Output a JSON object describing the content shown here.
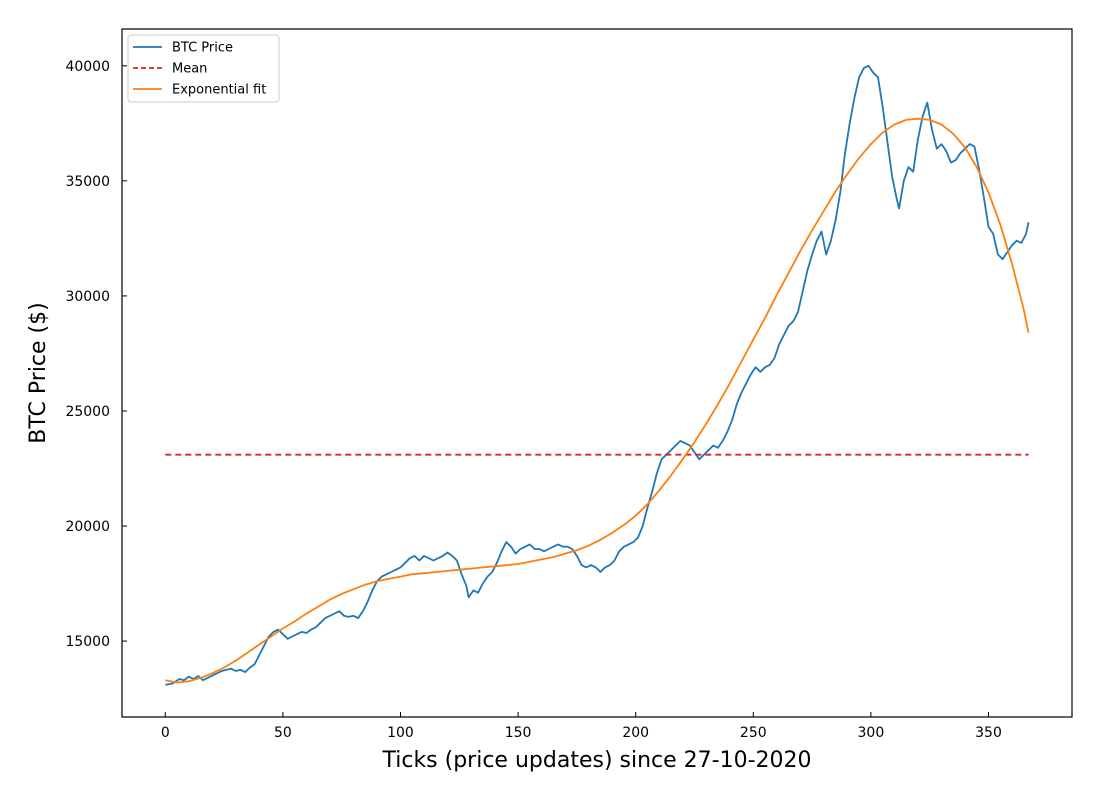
{
  "chart_data": {
    "type": "line",
    "xlabel": "Ticks (price updates) since 27-10-2020",
    "ylabel": "BTC Price ($)",
    "xlim": [
      -18.4,
      385.5
    ],
    "ylim": [
      11700,
      41600
    ],
    "xticks": [
      0,
      50,
      100,
      150,
      200,
      250,
      300,
      350
    ],
    "yticks": [
      15000,
      20000,
      25000,
      30000,
      35000,
      40000
    ],
    "grid": false,
    "legend_position": "upper-left",
    "colors": {
      "btc": "#1f77b4",
      "mean": "#d62728",
      "fit": "#ff7f0e"
    },
    "series": [
      {
        "name": "BTC Price",
        "style": "solid",
        "points": [
          [
            0,
            13100
          ],
          [
            3,
            13150
          ],
          [
            6,
            13350
          ],
          [
            8,
            13300
          ],
          [
            10,
            13450
          ],
          [
            12,
            13350
          ],
          [
            14,
            13480
          ],
          [
            16,
            13300
          ],
          [
            18,
            13400
          ],
          [
            20,
            13500
          ],
          [
            22,
            13600
          ],
          [
            24,
            13700
          ],
          [
            26,
            13750
          ],
          [
            28,
            13800
          ],
          [
            30,
            13700
          ],
          [
            32,
            13750
          ],
          [
            34,
            13650
          ],
          [
            36,
            13850
          ],
          [
            38,
            14000
          ],
          [
            40,
            14400
          ],
          [
            42,
            14800
          ],
          [
            44,
            15200
          ],
          [
            46,
            15400
          ],
          [
            48,
            15500
          ],
          [
            50,
            15300
          ],
          [
            52,
            15100
          ],
          [
            54,
            15200
          ],
          [
            56,
            15300
          ],
          [
            58,
            15400
          ],
          [
            60,
            15350
          ],
          [
            62,
            15500
          ],
          [
            64,
            15600
          ],
          [
            66,
            15800
          ],
          [
            68,
            16000
          ],
          [
            70,
            16100
          ],
          [
            72,
            16200
          ],
          [
            74,
            16300
          ],
          [
            76,
            16100
          ],
          [
            78,
            16050
          ],
          [
            80,
            16100
          ],
          [
            82,
            16000
          ],
          [
            84,
            16300
          ],
          [
            86,
            16700
          ],
          [
            88,
            17200
          ],
          [
            90,
            17600
          ],
          [
            92,
            17800
          ],
          [
            94,
            17900
          ],
          [
            96,
            18000
          ],
          [
            98,
            18100
          ],
          [
            100,
            18200
          ],
          [
            102,
            18400
          ],
          [
            104,
            18600
          ],
          [
            106,
            18700
          ],
          [
            108,
            18500
          ],
          [
            110,
            18700
          ],
          [
            112,
            18600
          ],
          [
            114,
            18500
          ],
          [
            116,
            18600
          ],
          [
            118,
            18700
          ],
          [
            120,
            18850
          ],
          [
            122,
            18700
          ],
          [
            124,
            18500
          ],
          [
            126,
            17900
          ],
          [
            128,
            17400
          ],
          [
            129,
            16900
          ],
          [
            131,
            17200
          ],
          [
            133,
            17100
          ],
          [
            135,
            17500
          ],
          [
            137,
            17800
          ],
          [
            139,
            18000
          ],
          [
            141,
            18400
          ],
          [
            143,
            18900
          ],
          [
            145,
            19300
          ],
          [
            147,
            19100
          ],
          [
            149,
            18800
          ],
          [
            151,
            19000
          ],
          [
            153,
            19100
          ],
          [
            155,
            19200
          ],
          [
            157,
            19000
          ],
          [
            159,
            19000
          ],
          [
            161,
            18900
          ],
          [
            163,
            19000
          ],
          [
            165,
            19100
          ],
          [
            167,
            19200
          ],
          [
            169,
            19100
          ],
          [
            171,
            19100
          ],
          [
            173,
            19000
          ],
          [
            175,
            18700
          ],
          [
            177,
            18300
          ],
          [
            179,
            18200
          ],
          [
            181,
            18300
          ],
          [
            183,
            18200
          ],
          [
            185,
            18000
          ],
          [
            187,
            18200
          ],
          [
            189,
            18300
          ],
          [
            191,
            18500
          ],
          [
            193,
            18900
          ],
          [
            195,
            19100
          ],
          [
            197,
            19200
          ],
          [
            199,
            19300
          ],
          [
            201,
            19500
          ],
          [
            203,
            20000
          ],
          [
            205,
            20800
          ],
          [
            207,
            21500
          ],
          [
            209,
            22300
          ],
          [
            211,
            22900
          ],
          [
            213,
            23100
          ],
          [
            215,
            23300
          ],
          [
            217,
            23500
          ],
          [
            219,
            23700
          ],
          [
            221,
            23600
          ],
          [
            223,
            23500
          ],
          [
            225,
            23200
          ],
          [
            227,
            22900
          ],
          [
            229,
            23100
          ],
          [
            231,
            23300
          ],
          [
            233,
            23500
          ],
          [
            235,
            23400
          ],
          [
            237,
            23700
          ],
          [
            239,
            24100
          ],
          [
            241,
            24600
          ],
          [
            243,
            25300
          ],
          [
            245,
            25800
          ],
          [
            247,
            26200
          ],
          [
            249,
            26600
          ],
          [
            251,
            26900
          ],
          [
            253,
            26700
          ],
          [
            255,
            26900
          ],
          [
            257,
            27000
          ],
          [
            259,
            27300
          ],
          [
            261,
            27900
          ],
          [
            263,
            28300
          ],
          [
            265,
            28700
          ],
          [
            267,
            28900
          ],
          [
            269,
            29300
          ],
          [
            271,
            30200
          ],
          [
            273,
            31100
          ],
          [
            275,
            31800
          ],
          [
            277,
            32400
          ],
          [
            279,
            32800
          ],
          [
            281,
            31800
          ],
          [
            283,
            32400
          ],
          [
            285,
            33300
          ],
          [
            287,
            34500
          ],
          [
            289,
            36200
          ],
          [
            291,
            37500
          ],
          [
            293,
            38600
          ],
          [
            295,
            39500
          ],
          [
            297,
            39900
          ],
          [
            299,
            40000
          ],
          [
            301,
            39700
          ],
          [
            303,
            39500
          ],
          [
            305,
            38200
          ],
          [
            307,
            36700
          ],
          [
            309,
            35200
          ],
          [
            311,
            34200
          ],
          [
            312,
            33800
          ],
          [
            314,
            35000
          ],
          [
            316,
            35600
          ],
          [
            318,
            35400
          ],
          [
            320,
            36800
          ],
          [
            322,
            37800
          ],
          [
            324,
            38400
          ],
          [
            326,
            37200
          ],
          [
            328,
            36400
          ],
          [
            330,
            36600
          ],
          [
            332,
            36300
          ],
          [
            334,
            35800
          ],
          [
            336,
            35900
          ],
          [
            338,
            36200
          ],
          [
            340,
            36400
          ],
          [
            342,
            36600
          ],
          [
            344,
            36500
          ],
          [
            346,
            35500
          ],
          [
            348,
            34300
          ],
          [
            350,
            33000
          ],
          [
            352,
            32700
          ],
          [
            354,
            31800
          ],
          [
            356,
            31600
          ],
          [
            358,
            31900
          ],
          [
            360,
            32200
          ],
          [
            362,
            32400
          ],
          [
            364,
            32300
          ],
          [
            366,
            32700
          ],
          [
            367,
            33200
          ]
        ]
      },
      {
        "name": "Mean",
        "style": "dashed",
        "points": [
          [
            0,
            23100
          ],
          [
            367,
            23100
          ]
        ]
      },
      {
        "name": "Exponential fit",
        "style": "solid",
        "points": [
          [
            0,
            13300
          ],
          [
            5,
            13200
          ],
          [
            10,
            13250
          ],
          [
            15,
            13400
          ],
          [
            20,
            13600
          ],
          [
            25,
            13850
          ],
          [
            30,
            14150
          ],
          [
            35,
            14500
          ],
          [
            40,
            14850
          ],
          [
            45,
            15200
          ],
          [
            50,
            15550
          ],
          [
            55,
            15850
          ],
          [
            60,
            16200
          ],
          [
            65,
            16500
          ],
          [
            70,
            16800
          ],
          [
            75,
            17050
          ],
          [
            80,
            17250
          ],
          [
            85,
            17450
          ],
          [
            90,
            17600
          ],
          [
            95,
            17700
          ],
          [
            100,
            17800
          ],
          [
            105,
            17900
          ],
          [
            110,
            17950
          ],
          [
            115,
            18000
          ],
          [
            120,
            18050
          ],
          [
            125,
            18100
          ],
          [
            130,
            18150
          ],
          [
            135,
            18200
          ],
          [
            140,
            18250
          ],
          [
            145,
            18300
          ],
          [
            150,
            18350
          ],
          [
            155,
            18450
          ],
          [
            160,
            18550
          ],
          [
            165,
            18650
          ],
          [
            170,
            18800
          ],
          [
            175,
            18950
          ],
          [
            180,
            19150
          ],
          [
            185,
            19400
          ],
          [
            190,
            19700
          ],
          [
            195,
            20050
          ],
          [
            200,
            20450
          ],
          [
            205,
            20950
          ],
          [
            210,
            21550
          ],
          [
            215,
            22200
          ],
          [
            220,
            22900
          ],
          [
            225,
            23650
          ],
          [
            230,
            24450
          ],
          [
            235,
            25300
          ],
          [
            240,
            26200
          ],
          [
            245,
            27150
          ],
          [
            250,
            28100
          ],
          [
            255,
            29050
          ],
          [
            260,
            30050
          ],
          [
            265,
            31000
          ],
          [
            270,
            31950
          ],
          [
            275,
            32850
          ],
          [
            280,
            33700
          ],
          [
            285,
            34550
          ],
          [
            290,
            35300
          ],
          [
            295,
            36000
          ],
          [
            300,
            36600
          ],
          [
            305,
            37100
          ],
          [
            310,
            37450
          ],
          [
            315,
            37650
          ],
          [
            320,
            37700
          ],
          [
            325,
            37650
          ],
          [
            330,
            37450
          ],
          [
            335,
            37050
          ],
          [
            340,
            36450
          ],
          [
            345,
            35600
          ],
          [
            350,
            34500
          ],
          [
            355,
            33100
          ],
          [
            360,
            31400
          ],
          [
            365,
            29400
          ],
          [
            367,
            28400
          ]
        ]
      }
    ]
  }
}
